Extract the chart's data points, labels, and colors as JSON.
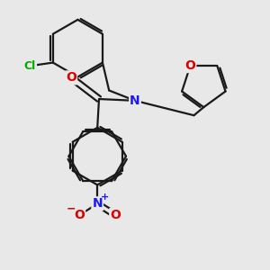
{
  "background_color": "#e8e8e8",
  "bond_color": "#1a1a1a",
  "atom_colors": {
    "Cl": "#00aa00",
    "O": "#dd0000",
    "N_amide": "#1a1aee",
    "N_nitro": "#1a1aee",
    "C": "#1a1a1a"
  },
  "lw": 1.6,
  "font_size": 9,
  "figsize": [
    3.0,
    3.0
  ],
  "dpi": 100
}
